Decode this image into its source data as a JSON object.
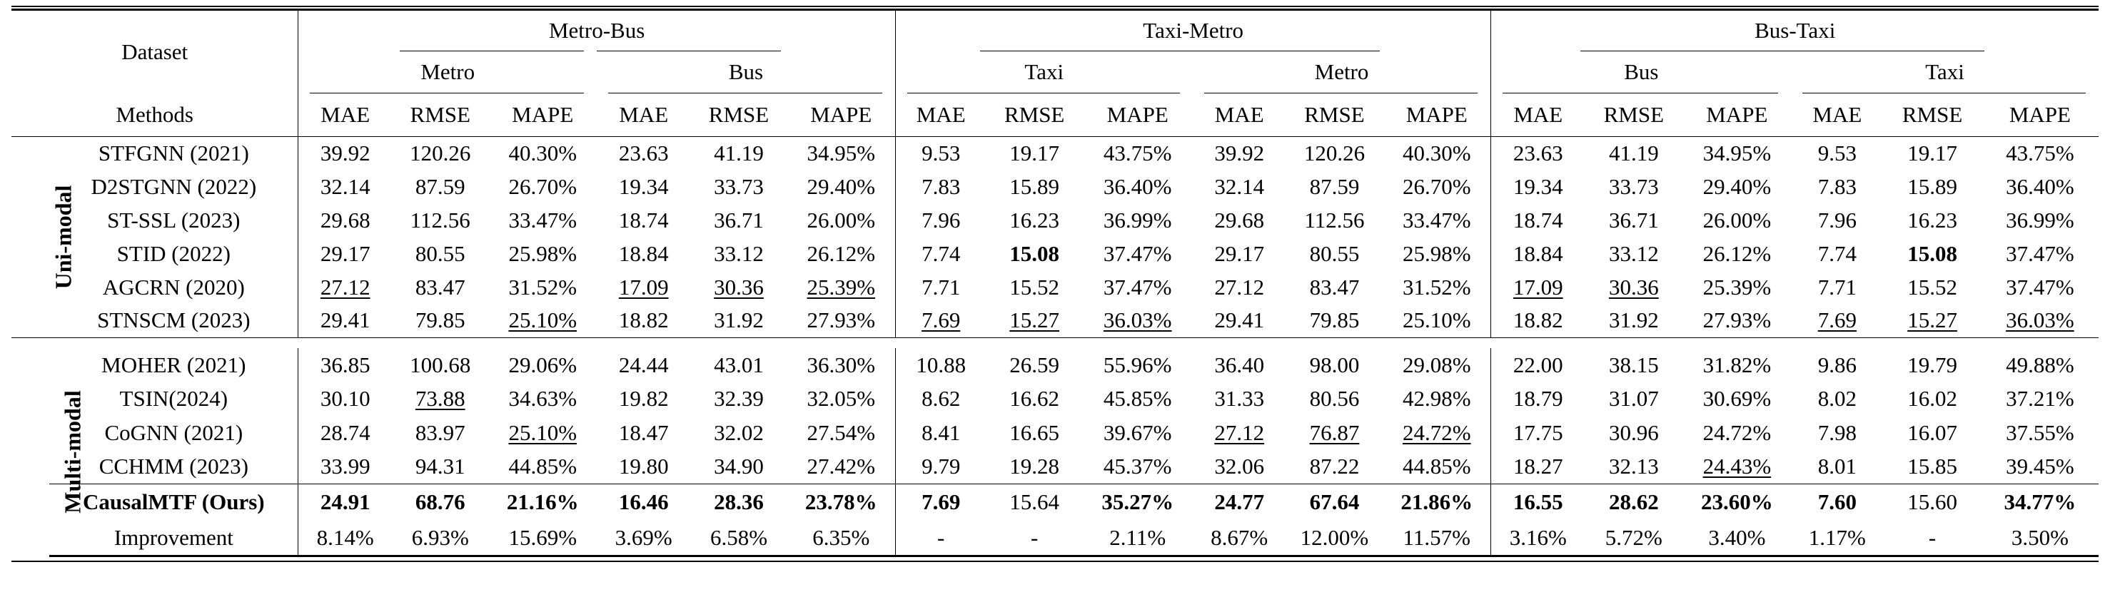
{
  "header": {
    "dataset_label": "Dataset",
    "methods_label": "Methods",
    "groups": [
      {
        "name": "Metro-Bus",
        "subs": [
          "Metro",
          "Bus"
        ]
      },
      {
        "name": "Taxi-Metro",
        "subs": [
          "Taxi",
          "Metro"
        ]
      },
      {
        "name": "Bus-Taxi",
        "subs": [
          "Bus",
          "Taxi"
        ]
      }
    ],
    "metrics": [
      "MAE",
      "RMSE",
      "MAPE"
    ]
  },
  "sections": [
    {
      "category": "Uni-modal",
      "rows": [
        {
          "method": "STFGNN (2021)",
          "values": [
            "39.92",
            "120.26",
            "40.30%",
            "23.63",
            "41.19",
            "34.95%",
            "9.53",
            "19.17",
            "43.75%",
            "39.92",
            "120.26",
            "40.30%",
            "23.63",
            "41.19",
            "34.95%",
            "9.53",
            "19.17",
            "43.75%"
          ]
        },
        {
          "method": "D2STGNN (2022)",
          "values": [
            "32.14",
            "87.59",
            "26.70%",
            "19.34",
            "33.73",
            "29.40%",
            "7.83",
            "15.89",
            "36.40%",
            "32.14",
            "87.59",
            "26.70%",
            "19.34",
            "33.73",
            "29.40%",
            "7.83",
            "15.89",
            "36.40%"
          ]
        },
        {
          "method": "ST-SSL (2023)",
          "values": [
            "29.68",
            "112.56",
            "33.47%",
            "18.74",
            "36.71",
            "26.00%",
            "7.96",
            "16.23",
            "36.99%",
            "29.68",
            "112.56",
            "33.47%",
            "18.74",
            "36.71",
            "26.00%",
            "7.96",
            "16.23",
            "36.99%"
          ]
        },
        {
          "method": "STID (2022)",
          "values": [
            "29.17",
            "80.55",
            "25.98%",
            "18.84",
            "33.12",
            "26.12%",
            "7.74",
            "15.08",
            "37.47%",
            "29.17",
            "80.55",
            "25.98%",
            "18.84",
            "33.12",
            "26.12%",
            "7.74",
            "15.08",
            "37.47%"
          ]
        },
        {
          "method": "AGCRN (2020)",
          "values": [
            "27.12",
            "83.47",
            "31.52%",
            "17.09",
            "30.36",
            "25.39%",
            "7.71",
            "15.52",
            "37.47%",
            "27.12",
            "83.47",
            "31.52%",
            "17.09",
            "30.36",
            "25.39%",
            "7.71",
            "15.52",
            "37.47%"
          ]
        },
        {
          "method": "STNSCM (2023)",
          "values": [
            "29.41",
            "79.85",
            "25.10%",
            "18.82",
            "31.92",
            "27.93%",
            "7.69",
            "15.27",
            "36.03%",
            "29.41",
            "79.85",
            "25.10%",
            "18.82",
            "31.92",
            "27.93%",
            "7.69",
            "15.27",
            "36.03%"
          ]
        }
      ]
    },
    {
      "category": "Multi-modal",
      "rows": [
        {
          "method": "MOHER (2021)",
          "values": [
            "36.85",
            "100.68",
            "29.06%",
            "24.44",
            "43.01",
            "36.30%",
            "10.88",
            "26.59",
            "55.96%",
            "36.40",
            "98.00",
            "29.08%",
            "22.00",
            "38.15",
            "31.82%",
            "9.86",
            "19.79",
            "49.88%"
          ]
        },
        {
          "method": "TSIN(2024)",
          "values": [
            "30.10",
            "73.88",
            "34.63%",
            "19.82",
            "32.39",
            "32.05%",
            "8.62",
            "16.62",
            "45.85%",
            "31.33",
            "80.56",
            "42.98%",
            "18.79",
            "31.07",
            "30.69%",
            "8.02",
            "16.02",
            "37.21%"
          ]
        },
        {
          "method": "CoGNN (2021)",
          "values": [
            "28.74",
            "83.97",
            "25.10%",
            "18.47",
            "32.02",
            "27.54%",
            "8.41",
            "16.65",
            "39.67%",
            "27.12",
            "76.87",
            "24.72%",
            "17.75",
            "30.96",
            "24.72%",
            "7.98",
            "16.07",
            "37.55%"
          ]
        },
        {
          "method": "CCHMM (2023)",
          "values": [
            "33.99",
            "94.31",
            "44.85%",
            "19.80",
            "34.90",
            "27.42%",
            "9.79",
            "19.28",
            "45.37%",
            "32.06",
            "87.22",
            "44.85%",
            "18.27",
            "32.13",
            "24.43%",
            "8.01",
            "15.85",
            "39.45%"
          ]
        },
        {
          "method": "CausalMTF (Ours)",
          "values": [
            "24.91",
            "68.76",
            "21.16%",
            "16.46",
            "28.36",
            "23.78%",
            "7.69",
            "15.64",
            "35.27%",
            "24.77",
            "67.64",
            "21.86%",
            "16.55",
            "28.62",
            "23.60%",
            "7.60",
            "15.60",
            "34.77%"
          ]
        },
        {
          "method": "Improvement",
          "values": [
            "8.14%",
            "6.93%",
            "15.69%",
            "3.69%",
            "6.58%",
            "6.35%",
            "-",
            "-",
            "2.11%",
            "8.67%",
            "12.00%",
            "11.57%",
            "3.16%",
            "5.72%",
            "3.40%",
            "1.17%",
            "-",
            "3.50%"
          ]
        }
      ]
    }
  ],
  "bold_cells": [
    [
      0,
      3,
      7
    ],
    [
      0,
      3,
      16
    ],
    [
      1,
      4,
      0
    ],
    [
      1,
      4,
      1
    ],
    [
      1,
      4,
      2
    ],
    [
      1,
      4,
      3
    ],
    [
      1,
      4,
      4
    ],
    [
      1,
      4,
      5
    ],
    [
      1,
      4,
      6
    ],
    [
      1,
      4,
      8
    ],
    [
      1,
      4,
      9
    ],
    [
      1,
      4,
      10
    ],
    [
      1,
      4,
      11
    ],
    [
      1,
      4,
      12
    ],
    [
      1,
      4,
      13
    ],
    [
      1,
      4,
      14
    ],
    [
      1,
      4,
      15
    ],
    [
      1,
      4,
      17
    ]
  ],
  "underline_cells": [
    [
      0,
      4,
      0
    ],
    [
      0,
      4,
      3
    ],
    [
      0,
      4,
      4
    ],
    [
      0,
      4,
      5
    ],
    [
      0,
      4,
      12
    ],
    [
      0,
      4,
      13
    ],
    [
      0,
      5,
      2
    ],
    [
      0,
      5,
      6
    ],
    [
      0,
      5,
      7
    ],
    [
      0,
      5,
      8
    ],
    [
      0,
      5,
      15
    ],
    [
      0,
      5,
      16
    ],
    [
      0,
      5,
      17
    ],
    [
      1,
      1,
      1
    ],
    [
      1,
      2,
      2
    ],
    [
      1,
      2,
      9
    ],
    [
      1,
      2,
      10
    ],
    [
      1,
      2,
      11
    ],
    [
      1,
      3,
      14
    ]
  ]
}
